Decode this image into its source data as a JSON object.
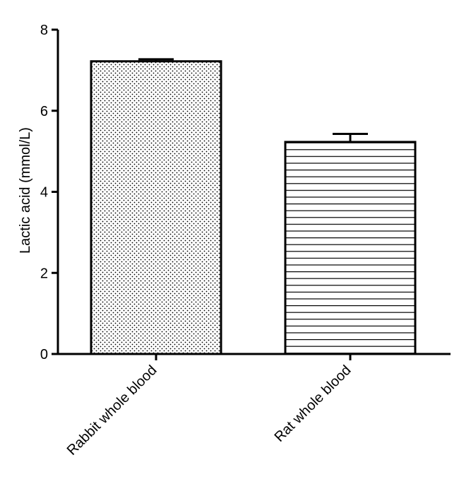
{
  "chart_data": {
    "type": "bar",
    "title": "",
    "xlabel": "",
    "ylabel": "Lactic acid (mmol/L)",
    "ylim": [
      0,
      8
    ],
    "yticks": [
      0,
      2,
      4,
      6,
      8
    ],
    "grid": false,
    "categories": [
      "Rabbit whole blood",
      "Rat whole blood"
    ],
    "values": [
      7.22,
      5.23
    ],
    "errors": [
      0.05,
      0.2
    ],
    "fill_patterns": [
      "dotted",
      "horizontal-lines"
    ],
    "colors": {
      "bar_stroke": "#000000",
      "axis": "#000000",
      "pattern": "#000000",
      "background": "#ffffff"
    }
  }
}
